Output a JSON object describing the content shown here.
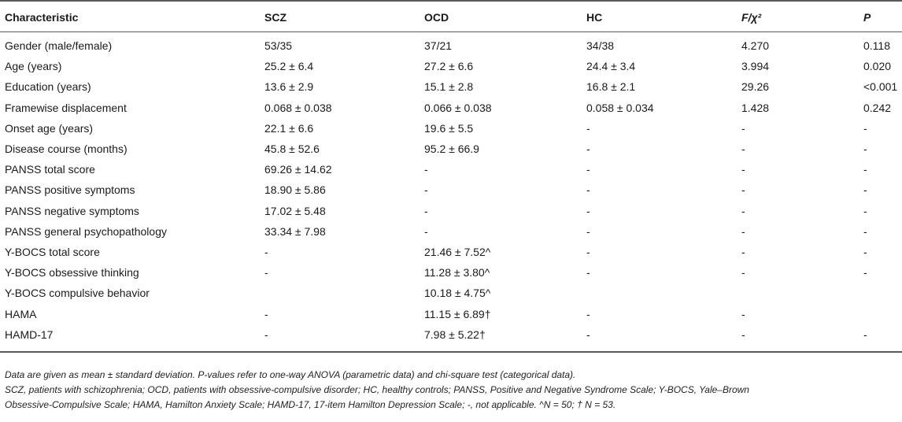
{
  "table": {
    "headers": [
      "Characteristic",
      "SCZ",
      "OCD",
      "HC",
      "F/χ²",
      "P"
    ],
    "rows": [
      [
        "Gender (male/female)",
        "53/35",
        "37/21",
        "34/38",
        "4.270",
        "0.118"
      ],
      [
        "Age (years)",
        "25.2 ± 6.4",
        "27.2 ± 6.6",
        "24.4 ± 3.4",
        "3.994",
        "0.020"
      ],
      [
        "Education (years)",
        "13.6 ± 2.9",
        "15.1 ± 2.8",
        "16.8 ± 2.1",
        "29.26",
        "<0.001"
      ],
      [
        "Framewise displacement",
        "0.068 ± 0.038",
        "0.066 ± 0.038",
        "0.058 ± 0.034",
        "1.428",
        "0.242"
      ],
      [
        "Onset age (years)",
        "22.1 ± 6.6",
        "19.6 ± 5.5",
        "-",
        "-",
        "-"
      ],
      [
        "Disease course (months)",
        "45.8 ± 52.6",
        "95.2 ± 66.9",
        "-",
        "-",
        "-"
      ],
      [
        "PANSS total score",
        "69.26 ± 14.62",
        "-",
        "-",
        "-",
        "-"
      ],
      [
        "PANSS positive symptoms",
        "18.90 ± 5.86",
        "-",
        "-",
        "-",
        "-"
      ],
      [
        "PANSS negative symptoms",
        "17.02 ± 5.48",
        "-",
        "-",
        "-",
        "-"
      ],
      [
        "PANSS general psychopathology",
        "33.34 ± 7.98",
        "-",
        "-",
        "-",
        "-"
      ],
      [
        "Y-BOCS total score",
        "-",
        "21.46 ± 7.52^",
        "-",
        "-",
        "-"
      ],
      [
        "Y-BOCS obsessive thinking",
        "-",
        "11.28 ± 3.80^",
        "-",
        "-",
        "-"
      ],
      [
        "Y-BOCS compulsive behavior",
        "",
        "10.18 ± 4.75^",
        "",
        "",
        ""
      ],
      [
        "HAMA",
        "-",
        "11.15 ± 6.89†",
        "-",
        "-",
        ""
      ],
      [
        "HAMD-17",
        "-",
        "7.98 ± 5.22†",
        "-",
        "-",
        "-"
      ]
    ]
  },
  "notes": {
    "line1": "Data are given as mean ± standard deviation. P-values refer to one-way ANOVA (parametric data) and chi-square test (categorical data).",
    "line2": "SCZ, patients with schizophrenia; OCD, patients with obsessive-compulsive disorder; HC, healthy controls; PANSS, Positive and Negative Syndrome Scale; Y-BOCS, Yale–Brown",
    "line3": "Obsessive-Compulsive Scale; HAMA, Hamilton Anxiety Scale; HAMD-17, 17-item Hamilton Depression Scale; -, not applicable. ^N = 50; † N = 53."
  }
}
